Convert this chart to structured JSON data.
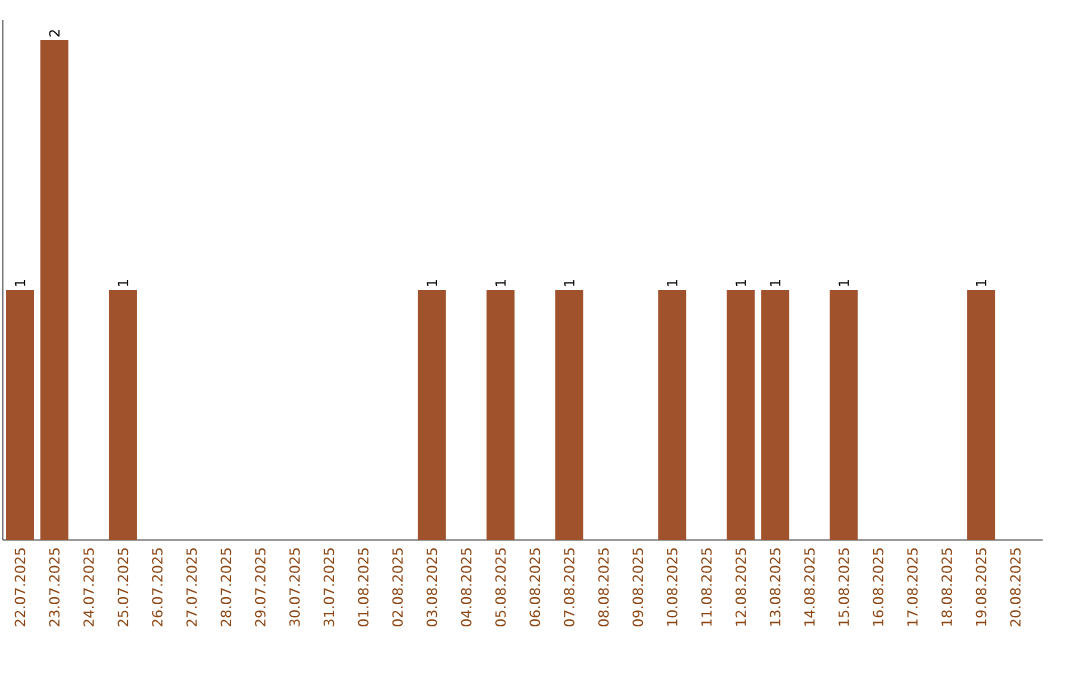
{
  "chart_data": {
    "type": "bar",
    "categories": [
      "22.07.2025",
      "23.07.2025",
      "24.07.2025",
      "25.07.2025",
      "26.07.2025",
      "27.07.2025",
      "28.07.2025",
      "29.07.2025",
      "30.07.2025",
      "31.07.2025",
      "01.08.2025",
      "02.08.2025",
      "03.08.2025",
      "04.08.2025",
      "05.08.2025",
      "06.08.2025",
      "07.08.2025",
      "08.08.2025",
      "09.08.2025",
      "10.08.2025",
      "11.08.2025",
      "12.08.2025",
      "13.08.2025",
      "14.08.2025",
      "15.08.2025",
      "16.08.2025",
      "17.08.2025",
      "18.08.2025",
      "19.08.2025",
      "20.08.2025"
    ],
    "values": [
      1,
      2,
      0,
      1,
      0,
      0,
      0,
      0,
      0,
      0,
      0,
      0,
      1,
      0,
      1,
      0,
      1,
      0,
      0,
      1,
      0,
      1,
      1,
      0,
      1,
      0,
      0,
      0,
      1,
      0
    ],
    "value_labels": [
      "1",
      "2",
      null,
      "1",
      null,
      null,
      null,
      null,
      null,
      null,
      null,
      null,
      "1",
      null,
      "1",
      null,
      "1",
      null,
      null,
      "1",
      null,
      "1",
      "1",
      null,
      "1",
      null,
      null,
      null,
      "1",
      null
    ],
    "color": "#a0522d",
    "ylim": [
      0,
      2.08
    ]
  }
}
